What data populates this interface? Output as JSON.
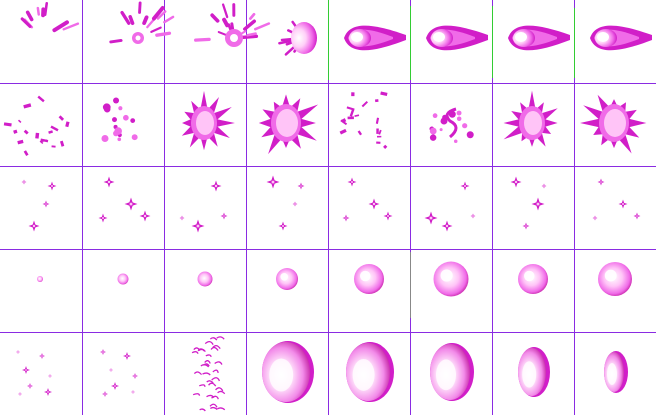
{
  "sprite_sheet": {
    "rows": 5,
    "columns": 8,
    "grid_line_color": "#8a2be2",
    "accent_divider_color": "#33cc33",
    "palette": {
      "magenta": "#d11ec8",
      "pink": "#f06be8",
      "light_pink": "#ffc4f7",
      "white_core": "#ffffff"
    },
    "animations": [
      {
        "row": 1,
        "effect": "fireball-charge-and-launch",
        "frames": 8
      },
      {
        "row": 2,
        "effect": "explosion-burst",
        "frames": 8
      },
      {
        "row": 3,
        "effect": "sparkle-twinkle",
        "frames": 8
      },
      {
        "row": 4,
        "effect": "energy-orb-grow",
        "frames": 8
      },
      {
        "row": 5,
        "effect": "shield-bubble",
        "frames": 8
      }
    ]
  }
}
